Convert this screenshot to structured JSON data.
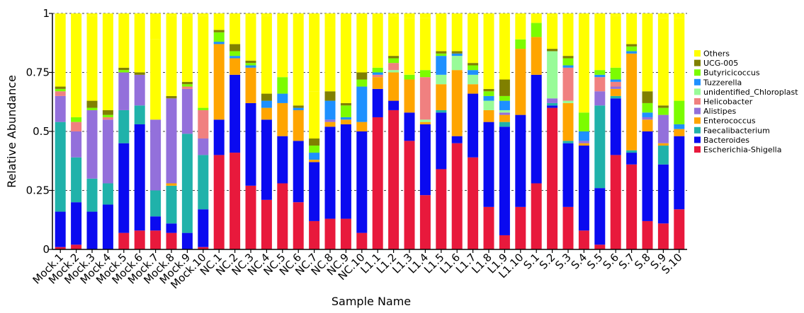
{
  "chart_data": {
    "type": "bar",
    "stacked": true,
    "xlabel": "Sample Name",
    "ylabel": "Relative Abundance",
    "ylim": [
      0,
      1
    ],
    "yticks": [
      "0",
      "0.25",
      "0.5",
      "0.75",
      "1"
    ],
    "grid": "horizontal dashed",
    "legend_position": "right",
    "categories": [
      "Mock.1",
      "Mock.2",
      "Mock.3",
      "Mock.4",
      "Mock.5",
      "Mock.6",
      "Mock.7",
      "Mock.8",
      "Mock.9",
      "Mock.10",
      "NC.1",
      "NC.2",
      "NC.3",
      "NC.4",
      "NC.5",
      "NC.6",
      "NC.7",
      "NC.8",
      "NC.9",
      "NC.10",
      "L1.1",
      "L1.2",
      "L1.3",
      "L1.4",
      "L1.5",
      "L1.6",
      "L1.7",
      "L1.8",
      "L1.9",
      "L1.10",
      "S.1",
      "S.2",
      "S.3",
      "S.4",
      "S.5",
      "S.6",
      "S.7",
      "S.8",
      "S.9",
      "S.10"
    ],
    "series": [
      {
        "name": "Escherichia-Shigella",
        "color": "#e8193c",
        "values": [
          0.01,
          0.02,
          0,
          0,
          0.07,
          0.08,
          0.08,
          0.07,
          0,
          0.01,
          0.4,
          0.41,
          0.27,
          0.21,
          0.28,
          0.2,
          0.12,
          0.13,
          0.13,
          0.07,
          0.56,
          0.59,
          0.46,
          0.23,
          0.34,
          0.45,
          0.39,
          0.18,
          0.06,
          0.18,
          0.28,
          0.6,
          0.18,
          0.08,
          0.02,
          0.4,
          0.36,
          0.12,
          0.11,
          0.17
        ]
      },
      {
        "name": "Bacteroides",
        "color": "#0a0af0",
        "values": [
          0.15,
          0.18,
          0.16,
          0.19,
          0.38,
          0.45,
          0.06,
          0.04,
          0.07,
          0.16,
          0.15,
          0.33,
          0.35,
          0.34,
          0.2,
          0.26,
          0.25,
          0.39,
          0.4,
          0.43,
          0.12,
          0.04,
          0.12,
          0.3,
          0.24,
          0.03,
          0.27,
          0.36,
          0.46,
          0.39,
          0.46,
          0.01,
          0.27,
          0.36,
          0.24,
          0.24,
          0.05,
          0.38,
          0.25,
          0.31
        ]
      },
      {
        "name": "Faecalibacterium",
        "color": "#20b2aa",
        "values": [
          0.38,
          0.19,
          0.14,
          0.09,
          0.14,
          0.08,
          0.11,
          0.16,
          0.42,
          0.23,
          0,
          0,
          0,
          0,
          0,
          0,
          0,
          0,
          0,
          0,
          0,
          0,
          0,
          0,
          0.01,
          0,
          0,
          0,
          0.02,
          0,
          0,
          0.01,
          0.01,
          0,
          0.35,
          0.01,
          0.01,
          0,
          0.08,
          0
        ]
      },
      {
        "name": "Enterococcus",
        "color": "#ffa500",
        "values": [
          0,
          0,
          0,
          0,
          0,
          0,
          0,
          0.01,
          0,
          0,
          0.32,
          0.07,
          0.15,
          0.05,
          0.14,
          0.13,
          0.01,
          0.02,
          0.02,
          0.04,
          0.05,
          0.12,
          0.14,
          0.01,
          0.11,
          0.28,
          0.04,
          0.05,
          0.03,
          0.28,
          0.16,
          0,
          0.16,
          0.01,
          0,
          0.03,
          0.41,
          0.05,
          0.01,
          0.03
        ]
      },
      {
        "name": "Alistipes",
        "color": "#9370db",
        "values": [
          0.11,
          0.11,
          0.29,
          0.27,
          0.16,
          0.13,
          0.3,
          0.36,
          0.19,
          0.07,
          0,
          0,
          0,
          0,
          0,
          0,
          0,
          0.01,
          0,
          0,
          0,
          0,
          0,
          0,
          0,
          0,
          0,
          0,
          0.01,
          0,
          0,
          0.02,
          0,
          0.01,
          0.06,
          0.01,
          0,
          0.01,
          0.12,
          0
        ]
      },
      {
        "name": "unidentified_Chloroplast",
        "color": "#98fb98",
        "values": [
          0,
          0,
          0,
          0,
          0,
          0,
          0,
          0,
          0,
          0,
          0,
          0,
          0,
          0,
          0,
          0,
          0,
          0,
          0,
          0,
          0,
          0.01,
          0,
          0.01,
          0.04,
          0.06,
          0.04,
          0.04,
          0.01,
          0,
          0,
          0.2,
          0.01,
          0,
          0,
          0,
          0,
          0,
          0,
          0
        ]
      },
      {
        "name": "Helicobacter",
        "color": "#f08080",
        "values": [
          0.02,
          0.04,
          0,
          0.01,
          0,
          0,
          0,
          0,
          0.01,
          0.12,
          0,
          0,
          0,
          0,
          0,
          0,
          0,
          0,
          0,
          0,
          0.01,
          0.03,
          0,
          0.18,
          0,
          0,
          0,
          0,
          0,
          0,
          0,
          0,
          0.14,
          0,
          0.06,
          0.02,
          0,
          0,
          0,
          0
        ]
      },
      {
        "name": "Tuzzerella",
        "color": "#1e90ff",
        "values": [
          0,
          0,
          0,
          0,
          0,
          0,
          0,
          0,
          0,
          0,
          0.01,
          0.01,
          0.01,
          0.03,
          0.04,
          0.01,
          0.03,
          0.08,
          0.01,
          0.15,
          0.01,
          0,
          0,
          0,
          0.08,
          0.01,
          0.02,
          0.02,
          0.04,
          0,
          0,
          0,
          0.01,
          0.04,
          0.01,
          0.01,
          0.01,
          0.02,
          0,
          0.02
        ]
      },
      {
        "name": "Butyricicoccus",
        "color": "#7cfc00",
        "values": [
          0.01,
          0.02,
          0.01,
          0.01,
          0.01,
          0,
          0,
          0,
          0.01,
          0.01,
          0.04,
          0.02,
          0.01,
          0,
          0.07,
          0,
          0.03,
          0,
          0.05,
          0.03,
          0.02,
          0.02,
          0.02,
          0.03,
          0.01,
          0,
          0.02,
          0.02,
          0.02,
          0.04,
          0.06,
          0,
          0.03,
          0.08,
          0.02,
          0.05,
          0.02,
          0.04,
          0.03,
          0.1
        ]
      },
      {
        "name": "UCG-005",
        "color": "#808000",
        "values": [
          0.01,
          0,
          0.03,
          0.02,
          0.01,
          0.01,
          0,
          0.01,
          0.01,
          0,
          0.01,
          0.03,
          0.01,
          0.03,
          0,
          0.01,
          0.03,
          0.04,
          0.01,
          0.03,
          0,
          0.01,
          0,
          0,
          0.01,
          0.01,
          0.01,
          0.01,
          0.07,
          0,
          0,
          0.01,
          0.01,
          0,
          0,
          0,
          0.01,
          0.05,
          0.01,
          0
        ]
      },
      {
        "name": "Others",
        "color": "#ffff00",
        "values": [
          0.31,
          0.44,
          0.36,
          0.41,
          0.23,
          0.25,
          0.34,
          0.34,
          0.28,
          0.39,
          0.07,
          0.13,
          0.19,
          0.33,
          0.27,
          0.36,
          0.2,
          0.27,
          0.38,
          0.25,
          0.23,
          0.17,
          0.24,
          0.22,
          0.16,
          0.16,
          0.21,
          0.32,
          0.28,
          0.1,
          0.04,
          0.14,
          0.19,
          0.42,
          0.24,
          0.22,
          0.14,
          0.34,
          0.37,
          0.35
        ]
      }
    ],
    "legend_order": [
      "Others",
      "UCG-005",
      "Butyricicoccus",
      "Tuzzerella",
      "unidentified_Chloroplast",
      "Helicobacter",
      "Alistipes",
      "Enterococcus",
      "Faecalibacterium",
      "Bacteroides",
      "Escherichia-Shigella"
    ]
  }
}
